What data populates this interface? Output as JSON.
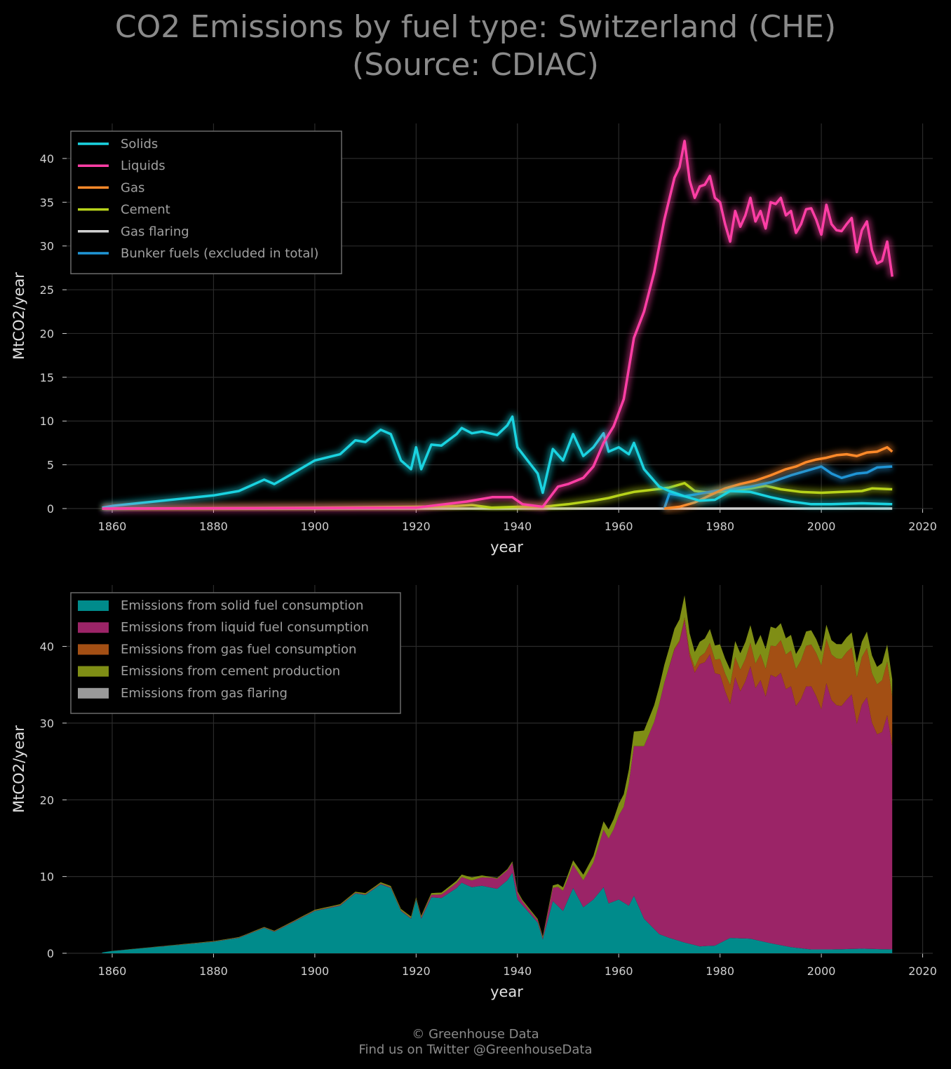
{
  "title": {
    "line1": "CO2 Emissions by fuel type: Switzerland (CHE)",
    "line2": "(Source: CDIAC)"
  },
  "footer": {
    "line1": "© Greenhouse Data",
    "line2": "Find us on Twitter @GreenhouseData"
  },
  "colors": {
    "background": "#000000",
    "grid": "#2a2a2a",
    "solids": "#1ad3e0",
    "liquids": "#ff3ea5",
    "gas": "#ff8a2a",
    "cement": "#b7d31a",
    "flaring": "#d0d0d0",
    "bunker": "#1f95d6",
    "area_solid": "#008b8b",
    "area_liquid": "#9b2467",
    "area_gas": "#a34f14",
    "area_cement": "#7f8e15",
    "area_flaring": "#9a9a9a"
  },
  "chart_data": [
    {
      "type": "line",
      "xlabel": "year",
      "ylabel": "MtCO2/year",
      "xlim": [
        1851,
        2022
      ],
      "ylim": [
        0,
        44
      ],
      "xticks": [
        1860,
        1880,
        1900,
        1920,
        1940,
        1960,
        1980,
        2000,
        2020
      ],
      "yticks": [
        0,
        5,
        10,
        15,
        20,
        25,
        30,
        35,
        40
      ],
      "grid": true,
      "legend_position": "top-left",
      "series": [
        {
          "name": "Solids",
          "color_key": "solids",
          "points": [
            [
              1858,
              0.1
            ],
            [
              1860,
              0.3
            ],
            [
              1865,
              0.6
            ],
            [
              1870,
              0.9
            ],
            [
              1875,
              1.2
            ],
            [
              1880,
              1.5
            ],
            [
              1885,
              2.0
            ],
            [
              1890,
              3.3
            ],
            [
              1892,
              2.8
            ],
            [
              1895,
              3.8
            ],
            [
              1900,
              5.5
            ],
            [
              1905,
              6.2
            ],
            [
              1908,
              7.8
            ],
            [
              1910,
              7.6
            ],
            [
              1913,
              9.0
            ],
            [
              1915,
              8.5
            ],
            [
              1917,
              5.5
            ],
            [
              1919,
              4.5
            ],
            [
              1920,
              7.0
            ],
            [
              1921,
              4.5
            ],
            [
              1923,
              7.3
            ],
            [
              1925,
              7.2
            ],
            [
              1928,
              8.5
            ],
            [
              1929,
              9.2
            ],
            [
              1931,
              8.6
            ],
            [
              1933,
              8.8
            ],
            [
              1936,
              8.4
            ],
            [
              1938,
              9.5
            ],
            [
              1939,
              10.5
            ],
            [
              1940,
              7.0
            ],
            [
              1942,
              5.5
            ],
            [
              1944,
              4.0
            ],
            [
              1945,
              1.8
            ],
            [
              1947,
              6.8
            ],
            [
              1949,
              5.5
            ],
            [
              1951,
              8.5
            ],
            [
              1953,
              6.0
            ],
            [
              1955,
              7.0
            ],
            [
              1957,
              8.6
            ],
            [
              1958,
              6.5
            ],
            [
              1960,
              7.0
            ],
            [
              1962,
              6.2
            ],
            [
              1963,
              7.5
            ],
            [
              1965,
              4.5
            ],
            [
              1968,
              2.5
            ],
            [
              1970,
              2.0
            ],
            [
              1973,
              1.4
            ],
            [
              1976,
              0.9
            ],
            [
              1979,
              1.0
            ],
            [
              1982,
              2.0
            ],
            [
              1986,
              1.9
            ],
            [
              1990,
              1.3
            ],
            [
              1994,
              0.8
            ],
            [
              1998,
              0.5
            ],
            [
              2002,
              0.5
            ],
            [
              2008,
              0.6
            ],
            [
              2014,
              0.5
            ]
          ]
        },
        {
          "name": "Liquids",
          "color_key": "liquids",
          "points": [
            [
              1858,
              0.0
            ],
            [
              1920,
              0.1
            ],
            [
              1930,
              0.8
            ],
            [
              1933,
              1.1
            ],
            [
              1935,
              1.3
            ],
            [
              1939,
              1.3
            ],
            [
              1941,
              0.5
            ],
            [
              1945,
              0.2
            ],
            [
              1948,
              2.5
            ],
            [
              1950,
              2.8
            ],
            [
              1953,
              3.5
            ],
            [
              1955,
              4.8
            ],
            [
              1957,
              7.5
            ],
            [
              1959,
              9.4
            ],
            [
              1961,
              12.5
            ],
            [
              1963,
              19.5
            ],
            [
              1965,
              22.5
            ],
            [
              1967,
              27.0
            ],
            [
              1969,
              33.0
            ],
            [
              1971,
              37.8
            ],
            [
              1972,
              39.0
            ],
            [
              1973,
              42.0
            ],
            [
              1974,
              37.5
            ],
            [
              1975,
              35.5
            ],
            [
              1976,
              36.8
            ],
            [
              1977,
              37.0
            ],
            [
              1978,
              38.0
            ],
            [
              1979,
              35.5
            ],
            [
              1980,
              35.0
            ],
            [
              1981,
              32.5
            ],
            [
              1982,
              30.5
            ],
            [
              1983,
              34.0
            ],
            [
              1984,
              32.2
            ],
            [
              1985,
              33.5
            ],
            [
              1986,
              35.5
            ],
            [
              1987,
              32.8
            ],
            [
              1988,
              34.0
            ],
            [
              1989,
              32.0
            ],
            [
              1990,
              35.0
            ],
            [
              1991,
              34.8
            ],
            [
              1992,
              35.5
            ],
            [
              1993,
              33.5
            ],
            [
              1994,
              34.0
            ],
            [
              1995,
              31.5
            ],
            [
              1996,
              32.5
            ],
            [
              1997,
              34.2
            ],
            [
              1998,
              34.3
            ],
            [
              1999,
              33.0
            ],
            [
              2000,
              31.3
            ],
            [
              2001,
              34.7
            ],
            [
              2002,
              32.5
            ],
            [
              2003,
              31.8
            ],
            [
              2004,
              31.7
            ],
            [
              2005,
              32.5
            ],
            [
              2006,
              33.2
            ],
            [
              2007,
              29.3
            ],
            [
              2008,
              31.8
            ],
            [
              2009,
              32.8
            ],
            [
              2010,
              29.5
            ],
            [
              2011,
              28.0
            ],
            [
              2012,
              28.3
            ],
            [
              2013,
              30.5
            ],
            [
              2014,
              26.5
            ]
          ]
        },
        {
          "name": "Gas",
          "color_key": "gas",
          "points": [
            [
              1969,
              0.0
            ],
            [
              1972,
              0.2
            ],
            [
              1975,
              0.7
            ],
            [
              1978,
              1.5
            ],
            [
              1981,
              2.3
            ],
            [
              1984,
              2.8
            ],
            [
              1987,
              3.2
            ],
            [
              1990,
              3.8
            ],
            [
              1993,
              4.5
            ],
            [
              1995,
              4.8
            ],
            [
              1997,
              5.3
            ],
            [
              1999,
              5.6
            ],
            [
              2001,
              5.8
            ],
            [
              2003,
              6.1
            ],
            [
              2005,
              6.2
            ],
            [
              2007,
              6.0
            ],
            [
              2009,
              6.4
            ],
            [
              2011,
              6.5
            ],
            [
              2013,
              7.0
            ],
            [
              2014,
              6.5
            ]
          ]
        },
        {
          "name": "Cement",
          "color_key": "cement",
          "points": [
            [
              1858,
              0.0
            ],
            [
              1900,
              0.1
            ],
            [
              1920,
              0.2
            ],
            [
              1928,
              0.3
            ],
            [
              1931,
              0.4
            ],
            [
              1935,
              0.1
            ],
            [
              1940,
              0.2
            ],
            [
              1945,
              0.2
            ],
            [
              1950,
              0.5
            ],
            [
              1955,
              0.9
            ],
            [
              1958,
              1.2
            ],
            [
              1960,
              1.5
            ],
            [
              1963,
              1.9
            ],
            [
              1966,
              2.1
            ],
            [
              1970,
              2.4
            ],
            [
              1973,
              2.9
            ],
            [
              1975,
              2.0
            ],
            [
              1978,
              1.8
            ],
            [
              1982,
              2.0
            ],
            [
              1986,
              2.3
            ],
            [
              1989,
              2.6
            ],
            [
              1992,
              2.2
            ],
            [
              1996,
              1.9
            ],
            [
              2000,
              1.8
            ],
            [
              2004,
              1.9
            ],
            [
              2008,
              2.0
            ],
            [
              2010,
              2.3
            ],
            [
              2014,
              2.2
            ]
          ]
        },
        {
          "name": "Gas flaring",
          "color_key": "flaring",
          "points": [
            [
              1858,
              0.0
            ],
            [
              2014,
              0.0
            ]
          ]
        },
        {
          "name": "Bunker fuels (excluded in total)",
          "color_key": "bunker",
          "points": [
            [
              1969,
              0.0
            ],
            [
              1970,
              1.7
            ],
            [
              1973,
              1.4
            ],
            [
              1976,
              1.7
            ],
            [
              1979,
              2.0
            ],
            [
              1982,
              2.2
            ],
            [
              1986,
              2.5
            ],
            [
              1990,
              3.0
            ],
            [
              1994,
              3.8
            ],
            [
              1997,
              4.3
            ],
            [
              2000,
              4.8
            ],
            [
              2002,
              4.0
            ],
            [
              2004,
              3.5
            ],
            [
              2007,
              4.0
            ],
            [
              2009,
              4.1
            ],
            [
              2011,
              4.7
            ],
            [
              2014,
              4.8
            ]
          ]
        }
      ]
    },
    {
      "type": "area",
      "stacked": true,
      "xlabel": "year",
      "ylabel": "MtCO2/year",
      "xlim": [
        1851,
        2022
      ],
      "ylim": [
        0,
        48
      ],
      "xticks": [
        1860,
        1880,
        1900,
        1920,
        1940,
        1960,
        1980,
        2000,
        2020
      ],
      "yticks": [
        0,
        10,
        20,
        30,
        40
      ],
      "grid": true,
      "legend_position": "top-left",
      "series": [
        {
          "name": "Emissions from solid fuel consumption",
          "color_key": "area_solid",
          "series_ref": "Solids"
        },
        {
          "name": "Emissions from liquid fuel consumption",
          "color_key": "area_liquid",
          "series_ref": "Liquids"
        },
        {
          "name": "Emissions from gas fuel consumption",
          "color_key": "area_gas",
          "series_ref": "Gas"
        },
        {
          "name": "Emissions from cement production",
          "color_key": "area_cement",
          "series_ref": "Cement"
        },
        {
          "name": "Emissions from gas flaring",
          "color_key": "area_flaring",
          "series_ref": "Gas flaring"
        }
      ]
    }
  ]
}
